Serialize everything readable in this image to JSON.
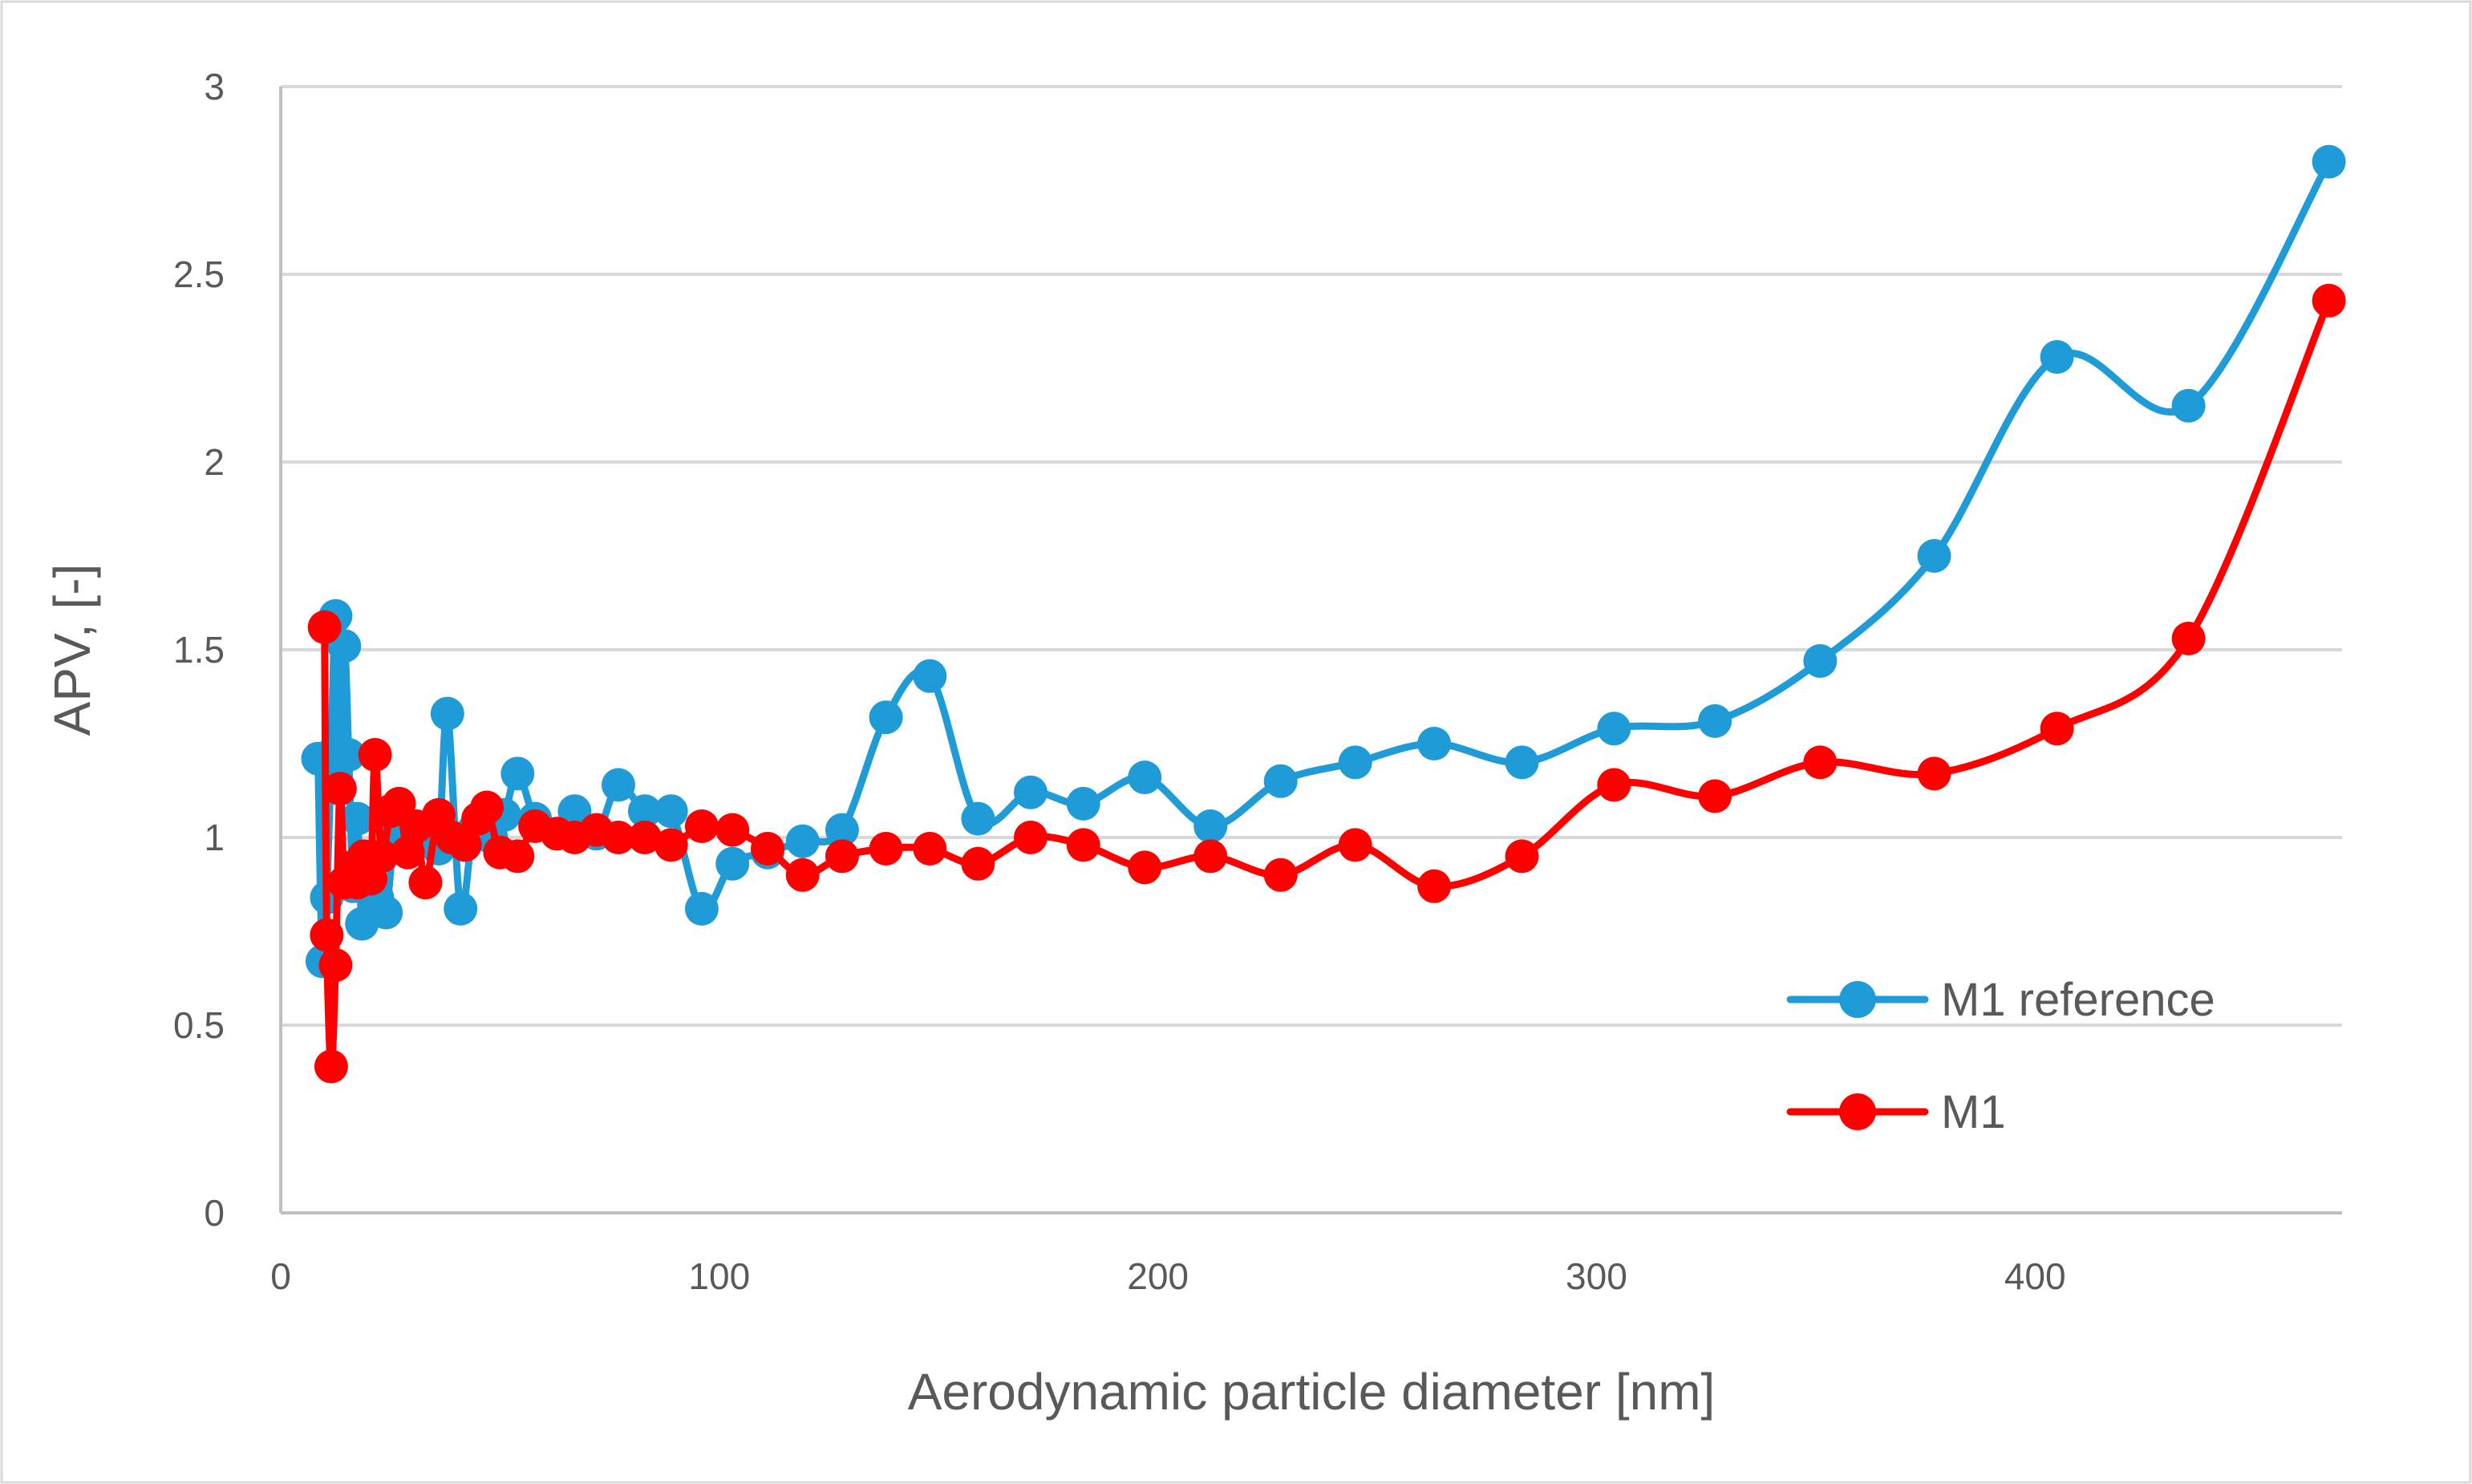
{
  "chart_data": {
    "type": "line",
    "title": "",
    "xlabel": "Aerodynamic particle diameter [nm]",
    "ylabel": "APV, [-]",
    "xlim": [
      0,
      470
    ],
    "ylim": [
      0,
      3
    ],
    "x_ticks": [
      0,
      100,
      200,
      300,
      400
    ],
    "y_ticks": [
      0,
      0.5,
      1,
      1.5,
      2,
      2.5,
      3
    ],
    "x_tick_labels": [
      "0",
      "100",
      "200",
      "300",
      "400"
    ],
    "y_tick_labels": [
      "0",
      "0.5",
      "1",
      "1.5",
      "2",
      "2.5",
      "3"
    ],
    "grid": "horizontal",
    "legend_position": "bottom-right",
    "smooth": true,
    "series": [
      {
        "name": "M1 reference",
        "color": "#1f9bd7",
        "points": [
          [
            8.5,
            1.21
          ],
          [
            9.5,
            0.67
          ],
          [
            10.5,
            0.84
          ],
          [
            11.5,
            1.22
          ],
          [
            12.5,
            1.59
          ],
          [
            13.5,
            1.21
          ],
          [
            14.5,
            1.51
          ],
          [
            15.5,
            1.22
          ],
          [
            16.5,
            0.87
          ],
          [
            17.5,
            1.05
          ],
          [
            18.5,
            0.77
          ],
          [
            20,
            0.87
          ],
          [
            22,
            0.84
          ],
          [
            24,
            0.8
          ],
          [
            26,
            1.01
          ],
          [
            28,
            0.97
          ],
          [
            30,
            0.98
          ],
          [
            32,
            1.02
          ],
          [
            34,
            1.01
          ],
          [
            36,
            0.97
          ],
          [
            38,
            1.33
          ],
          [
            41,
            0.81
          ],
          [
            44,
            1.02
          ],
          [
            48,
            1.0
          ],
          [
            51,
            1.06
          ],
          [
            54,
            1.17
          ],
          [
            58,
            1.05
          ],
          [
            63,
            1.01
          ],
          [
            67,
            1.07
          ],
          [
            72,
            1.01
          ],
          [
            77,
            1.14
          ],
          [
            83,
            1.07
          ],
          [
            89,
            1.07
          ],
          [
            96,
            0.81
          ],
          [
            103,
            0.93
          ],
          [
            111,
            0.96
          ],
          [
            119,
            0.99
          ],
          [
            128,
            1.02
          ],
          [
            138,
            1.32
          ],
          [
            148,
            1.43
          ],
          [
            159,
            1.05
          ],
          [
            171,
            1.12
          ],
          [
            183,
            1.09
          ],
          [
            197,
            1.16
          ],
          [
            212,
            1.03
          ],
          [
            228,
            1.15
          ],
          [
            245,
            1.2
          ],
          [
            263,
            1.25
          ],
          [
            283,
            1.2
          ],
          [
            304,
            1.29
          ],
          [
            327,
            1.31
          ],
          [
            351,
            1.47
          ],
          [
            377,
            1.75
          ],
          [
            405,
            2.28
          ],
          [
            435,
            2.15
          ],
          [
            467,
            2.8
          ]
        ]
      },
      {
        "name": "M1",
        "color": "#ff0000",
        "points": [
          [
            10,
            1.56
          ],
          [
            10.5,
            0.74
          ],
          [
            11.5,
            0.39
          ],
          [
            12.5,
            0.66
          ],
          [
            13.5,
            1.13
          ],
          [
            14.5,
            0.88
          ],
          [
            16,
            0.92
          ],
          [
            17.5,
            0.88
          ],
          [
            19,
            0.95
          ],
          [
            20.5,
            0.89
          ],
          [
            21.5,
            1.22
          ],
          [
            23,
            0.95
          ],
          [
            25,
            1.07
          ],
          [
            27,
            1.09
          ],
          [
            29,
            0.96
          ],
          [
            31,
            1.03
          ],
          [
            33,
            0.88
          ],
          [
            36,
            1.06
          ],
          [
            39,
            1.0
          ],
          [
            42,
            0.98
          ],
          [
            45,
            1.05
          ],
          [
            47,
            1.08
          ],
          [
            50,
            0.96
          ],
          [
            54,
            0.95
          ],
          [
            58,
            1.03
          ],
          [
            63,
            1.01
          ],
          [
            67,
            1.0
          ],
          [
            72,
            1.02
          ],
          [
            77,
            1.0
          ],
          [
            83,
            1.0
          ],
          [
            89,
            0.98
          ],
          [
            96,
            1.03
          ],
          [
            103,
            1.02
          ],
          [
            111,
            0.97
          ],
          [
            119,
            0.9
          ],
          [
            128,
            0.95
          ],
          [
            138,
            0.97
          ],
          [
            148,
            0.97
          ],
          [
            159,
            0.93
          ],
          [
            171,
            1.0
          ],
          [
            183,
            0.98
          ],
          [
            197,
            0.92
          ],
          [
            212,
            0.95
          ],
          [
            228,
            0.9
          ],
          [
            245,
            0.98
          ],
          [
            263,
            0.87
          ],
          [
            283,
            0.95
          ],
          [
            304,
            1.14
          ],
          [
            327,
            1.11
          ],
          [
            351,
            1.2
          ],
          [
            377,
            1.17
          ],
          [
            405,
            1.29
          ],
          [
            435,
            1.53
          ],
          [
            467,
            2.43
          ]
        ]
      }
    ]
  }
}
